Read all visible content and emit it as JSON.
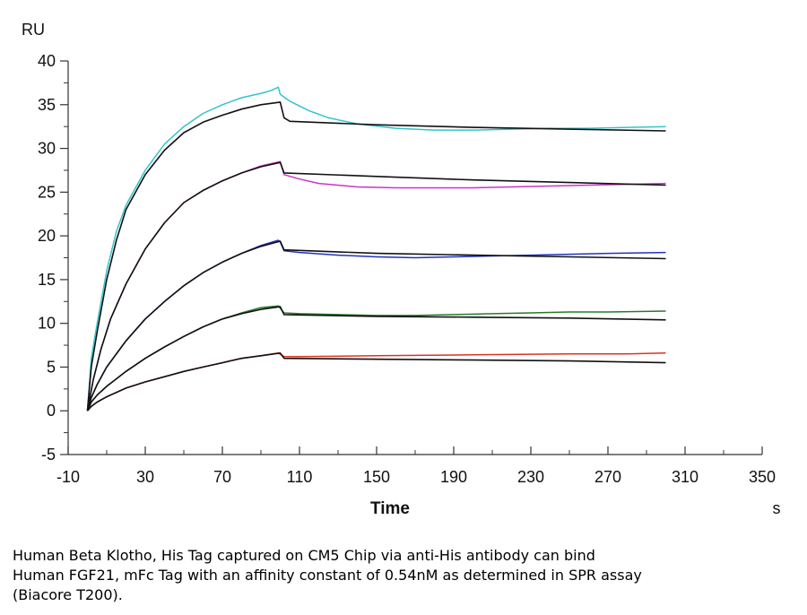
{
  "chart_data": {
    "type": "line",
    "title": "",
    "xlabel": "Time",
    "x_unit": "s",
    "ylabel": "",
    "y_unit": "RU",
    "xlim": [
      -10,
      350
    ],
    "ylim": [
      -5,
      40
    ],
    "x_ticks": [
      -10,
      30,
      70,
      110,
      150,
      190,
      230,
      270,
      310,
      350
    ],
    "y_ticks": [
      -5,
      0,
      5,
      10,
      15,
      20,
      25,
      30,
      35,
      40
    ],
    "grid": false,
    "legend": "none",
    "colors": {
      "cyan": "#33c4cc",
      "magenta": "#cc33cc",
      "blue": "#2233bb",
      "green": "#2a7a2a",
      "red": "#dd3322",
      "fit": "#111111"
    },
    "series": [
      {
        "color": "cyan",
        "values": [
          [
            0,
            0
          ],
          [
            2,
            6
          ],
          [
            5,
            10
          ],
          [
            10,
            16
          ],
          [
            15,
            20.5
          ],
          [
            20,
            23.5
          ],
          [
            30,
            27.5
          ],
          [
            40,
            30.5
          ],
          [
            50,
            32.5
          ],
          [
            60,
            34
          ],
          [
            70,
            35
          ],
          [
            80,
            35.8
          ],
          [
            90,
            36.3
          ],
          [
            95,
            36.6
          ],
          [
            99,
            37
          ],
          [
            100,
            36.2
          ],
          [
            105,
            35.4
          ],
          [
            115,
            34.3
          ],
          [
            125,
            33.5
          ],
          [
            140,
            32.8
          ],
          [
            160,
            32.3
          ],
          [
            180,
            32.1
          ],
          [
            200,
            32.1
          ],
          [
            220,
            32.2
          ],
          [
            240,
            32.3
          ],
          [
            260,
            32.3
          ],
          [
            280,
            32.4
          ],
          [
            300,
            32.5
          ]
        ]
      },
      {
        "color": "fit",
        "values": [
          [
            0,
            0
          ],
          [
            2,
            5
          ],
          [
            5,
            9
          ],
          [
            10,
            15
          ],
          [
            15,
            19.5
          ],
          [
            20,
            23
          ],
          [
            30,
            27
          ],
          [
            40,
            29.8
          ],
          [
            50,
            31.8
          ],
          [
            60,
            33
          ],
          [
            70,
            33.8
          ],
          [
            80,
            34.5
          ],
          [
            90,
            35
          ],
          [
            100,
            35.3
          ],
          [
            102,
            33.5
          ],
          [
            105,
            33.1
          ],
          [
            150,
            32.7
          ],
          [
            200,
            32.4
          ],
          [
            250,
            32.2
          ],
          [
            300,
            32
          ]
        ]
      },
      {
        "color": "magenta",
        "values": [
          [
            0,
            0
          ],
          [
            3,
            3.5
          ],
          [
            7,
            7
          ],
          [
            12,
            10.5
          ],
          [
            20,
            14.5
          ],
          [
            30,
            18.5
          ],
          [
            40,
            21.5
          ],
          [
            50,
            23.8
          ],
          [
            60,
            25.2
          ],
          [
            70,
            26.3
          ],
          [
            80,
            27.2
          ],
          [
            90,
            28
          ],
          [
            100,
            28.5
          ],
          [
            102,
            27
          ],
          [
            110,
            26.5
          ],
          [
            120,
            26
          ],
          [
            140,
            25.6
          ],
          [
            160,
            25.5
          ],
          [
            180,
            25.5
          ],
          [
            200,
            25.5
          ],
          [
            220,
            25.6
          ],
          [
            240,
            25.7
          ],
          [
            260,
            25.8
          ],
          [
            280,
            25.9
          ],
          [
            300,
            26
          ]
        ]
      },
      {
        "color": "fit",
        "values": [
          [
            0,
            0
          ],
          [
            3,
            3.5
          ],
          [
            7,
            7
          ],
          [
            12,
            10.5
          ],
          [
            20,
            14.5
          ],
          [
            30,
            18.5
          ],
          [
            40,
            21.5
          ],
          [
            50,
            23.8
          ],
          [
            60,
            25.2
          ],
          [
            70,
            26.3
          ],
          [
            80,
            27.2
          ],
          [
            90,
            27.9
          ],
          [
            100,
            28.4
          ],
          [
            102,
            27.2
          ],
          [
            150,
            26.8
          ],
          [
            200,
            26.4
          ],
          [
            250,
            26.1
          ],
          [
            300,
            25.8
          ]
        ]
      },
      {
        "color": "blue",
        "values": [
          [
            0,
            0
          ],
          [
            2,
            1.5
          ],
          [
            5,
            3
          ],
          [
            10,
            5
          ],
          [
            20,
            8
          ],
          [
            30,
            10.5
          ],
          [
            40,
            12.5
          ],
          [
            50,
            14.3
          ],
          [
            60,
            15.8
          ],
          [
            70,
            17
          ],
          [
            80,
            18
          ],
          [
            90,
            18.9
          ],
          [
            99,
            19.5
          ],
          [
            100,
            19.3
          ],
          [
            102,
            18.3
          ],
          [
            110,
            18.1
          ],
          [
            130,
            17.8
          ],
          [
            150,
            17.6
          ],
          [
            170,
            17.5
          ],
          [
            190,
            17.6
          ],
          [
            210,
            17.7
          ],
          [
            230,
            17.8
          ],
          [
            250,
            17.9
          ],
          [
            270,
            18
          ],
          [
            300,
            18.1
          ]
        ]
      },
      {
        "color": "fit",
        "values": [
          [
            0,
            0
          ],
          [
            2,
            1.5
          ],
          [
            5,
            3
          ],
          [
            10,
            5
          ],
          [
            20,
            8
          ],
          [
            30,
            10.5
          ],
          [
            40,
            12.5
          ],
          [
            50,
            14.3
          ],
          [
            60,
            15.8
          ],
          [
            70,
            17
          ],
          [
            80,
            18
          ],
          [
            90,
            18.8
          ],
          [
            100,
            19.4
          ],
          [
            102,
            18.4
          ],
          [
            150,
            18
          ],
          [
            200,
            17.8
          ],
          [
            250,
            17.6
          ],
          [
            300,
            17.4
          ]
        ]
      },
      {
        "color": "green",
        "values": [
          [
            0,
            0
          ],
          [
            2,
            1
          ],
          [
            5,
            1.8
          ],
          [
            10,
            2.8
          ],
          [
            20,
            4.5
          ],
          [
            30,
            6
          ],
          [
            40,
            7.3
          ],
          [
            50,
            8.5
          ],
          [
            60,
            9.6
          ],
          [
            70,
            10.5
          ],
          [
            80,
            11.2
          ],
          [
            90,
            11.8
          ],
          [
            99,
            12
          ],
          [
            102,
            11.2
          ],
          [
            110,
            11.1
          ],
          [
            130,
            11
          ],
          [
            150,
            10.9
          ],
          [
            170,
            10.9
          ],
          [
            190,
            11
          ],
          [
            210,
            11.1
          ],
          [
            230,
            11.2
          ],
          [
            250,
            11.3
          ],
          [
            270,
            11.3
          ],
          [
            300,
            11.4
          ]
        ]
      },
      {
        "color": "fit",
        "values": [
          [
            0,
            0
          ],
          [
            2,
            1
          ],
          [
            5,
            1.8
          ],
          [
            10,
            2.8
          ],
          [
            20,
            4.5
          ],
          [
            30,
            6
          ],
          [
            40,
            7.3
          ],
          [
            50,
            8.5
          ],
          [
            60,
            9.6
          ],
          [
            70,
            10.5
          ],
          [
            80,
            11.1
          ],
          [
            90,
            11.6
          ],
          [
            100,
            11.9
          ],
          [
            102,
            11
          ],
          [
            150,
            10.8
          ],
          [
            200,
            10.7
          ],
          [
            250,
            10.6
          ],
          [
            300,
            10.4
          ]
        ]
      },
      {
        "color": "red",
        "values": [
          [
            0,
            0
          ],
          [
            2,
            0.5
          ],
          [
            5,
            1
          ],
          [
            10,
            1.6
          ],
          [
            20,
            2.6
          ],
          [
            30,
            3.3
          ],
          [
            40,
            3.9
          ],
          [
            50,
            4.5
          ],
          [
            60,
            5
          ],
          [
            70,
            5.5
          ],
          [
            80,
            6
          ],
          [
            90,
            6.3
          ],
          [
            99,
            6.6
          ],
          [
            102,
            6.2
          ],
          [
            110,
            6.2
          ],
          [
            150,
            6.3
          ],
          [
            200,
            6.4
          ],
          [
            250,
            6.5
          ],
          [
            280,
            6.5
          ],
          [
            300,
            6.6
          ]
        ]
      },
      {
        "color": "fit",
        "values": [
          [
            0,
            0
          ],
          [
            2,
            0.5
          ],
          [
            5,
            1
          ],
          [
            10,
            1.6
          ],
          [
            20,
            2.6
          ],
          [
            30,
            3.3
          ],
          [
            40,
            3.9
          ],
          [
            50,
            4.5
          ],
          [
            60,
            5
          ],
          [
            70,
            5.5
          ],
          [
            80,
            6
          ],
          [
            90,
            6.3
          ],
          [
            100,
            6.6
          ],
          [
            102,
            6
          ],
          [
            150,
            5.9
          ],
          [
            200,
            5.8
          ],
          [
            250,
            5.7
          ],
          [
            300,
            5.5
          ]
        ]
      }
    ]
  },
  "caption": [
    "Human Beta Klotho, His Tag captured on CM5 Chip via anti-His antibody can bind",
    "Human FGF21, mFc Tag with an affinity constant of 0.54nM as determined in SPR assay",
    "(Biacore T200)."
  ]
}
